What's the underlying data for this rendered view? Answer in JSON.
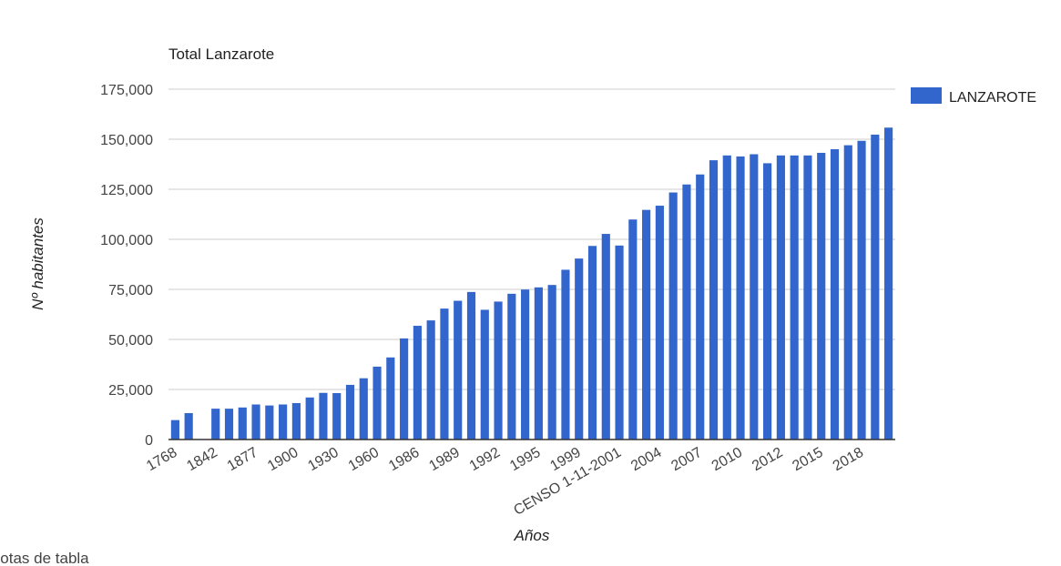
{
  "chart_data": {
    "type": "bar",
    "title": "Total Lanzarote",
    "xlabel": "Años",
    "ylabel": "Nº habitantes",
    "ylim": [
      0,
      175000
    ],
    "yticks": [
      "0",
      "25,000",
      "50,000",
      "75,000",
      "100,000",
      "125,000",
      "150,000",
      "175,000"
    ],
    "grid": true,
    "legend_position": "right",
    "series": [
      {
        "name": "LANZAROTE",
        "color": "#3366cc",
        "values": [
          9700,
          13200,
          null,
          15400,
          15400,
          16000,
          17500,
          17000,
          17500,
          18200,
          21000,
          23300,
          23200,
          27300,
          30600,
          36400,
          41000,
          50500,
          56800,
          59500,
          65400,
          69300,
          73700,
          64800,
          68900,
          72800,
          74900,
          76000,
          77200,
          84800,
          90400,
          96700,
          102700,
          96900,
          109900,
          114700,
          116800,
          123400,
          127400,
          132400,
          139500,
          141900,
          141400,
          142500,
          138000,
          141900,
          141900,
          141900,
          143200,
          145000,
          147000,
          149200,
          152300,
          155800
        ]
      }
    ],
    "visible_x_labels": [
      {
        "index": 0,
        "label": "1768"
      },
      {
        "index": 3,
        "label": "1842"
      },
      {
        "index": 6,
        "label": "1877"
      },
      {
        "index": 9,
        "label": "1900"
      },
      {
        "index": 12,
        "label": "1930"
      },
      {
        "index": 15,
        "label": "1960"
      },
      {
        "index": 18,
        "label": "1986"
      },
      {
        "index": 21,
        "label": "1989"
      },
      {
        "index": 24,
        "label": "1992"
      },
      {
        "index": 27,
        "label": "1995"
      },
      {
        "index": 30,
        "label": "1999"
      },
      {
        "index": 33,
        "label": "CENSO 1-11-2001"
      },
      {
        "index": 36,
        "label": "2004"
      },
      {
        "index": 39,
        "label": "2007"
      },
      {
        "index": 42,
        "label": "2010"
      },
      {
        "index": 45,
        "label": "2012"
      },
      {
        "index": 48,
        "label": "2015"
      },
      {
        "index": 51,
        "label": "2018"
      }
    ]
  },
  "footer": {
    "link_text": "Notas de tabla"
  }
}
